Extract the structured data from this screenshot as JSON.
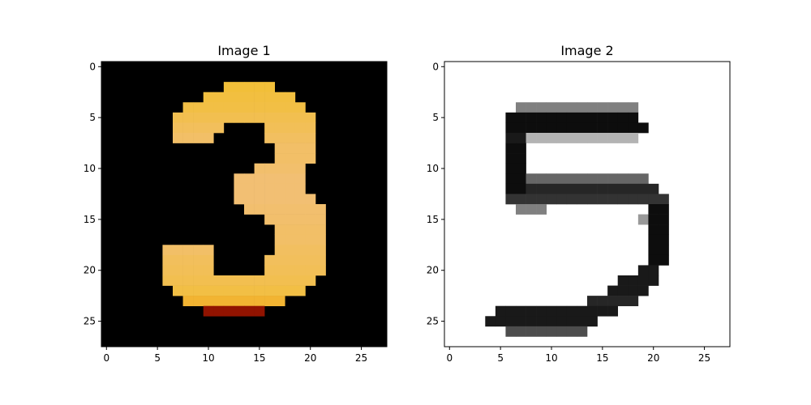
{
  "chart_data": [
    {
      "type": "heatmap",
      "title": "Image 1",
      "colormap": "afmhot",
      "background": "#000000",
      "xlim": [
        -0.5,
        27.5
      ],
      "ylim": [
        27.5,
        -0.5
      ],
      "xticks": [
        0,
        5,
        10,
        15,
        20,
        25
      ],
      "yticks": [
        0,
        5,
        10,
        15,
        20,
        25
      ],
      "xtick_labels": [
        "0",
        "5",
        "10",
        "15",
        "20",
        "25"
      ],
      "ytick_labels": [
        "0",
        "5",
        "10",
        "15",
        "20",
        "25"
      ],
      "depicted_digit": "3",
      "rows": [
        "............................",
        "............................",
        "............................",
        "............................",
        "............................",
        "............................",
        "............................",
        "............................",
        "............................",
        "............................",
        "............................",
        "............................",
        "............................",
        "............................",
        "............................",
        "............................",
        "............................",
        "............................",
        "............................",
        "............................",
        "............................",
        "............................",
        "............................",
        "............................",
        "............................",
        "............................",
        "............................",
        "............................"
      ]
    },
    {
      "type": "heatmap",
      "title": "Image 2",
      "colormap": "gray_r",
      "background": "#ffffff",
      "xlim": [
        -0.5,
        27.5
      ],
      "ylim": [
        27.5,
        -0.5
      ],
      "xticks": [
        0,
        5,
        10,
        15,
        20,
        25
      ],
      "yticks": [
        0,
        5,
        10,
        15,
        20,
        25
      ],
      "xtick_labels": [
        "0",
        "5",
        "10",
        "15",
        "20",
        "25"
      ],
      "ytick_labels": [
        "0",
        "5",
        "10",
        "15",
        "20",
        "25"
      ],
      "depicted_digit": "5"
    }
  ]
}
